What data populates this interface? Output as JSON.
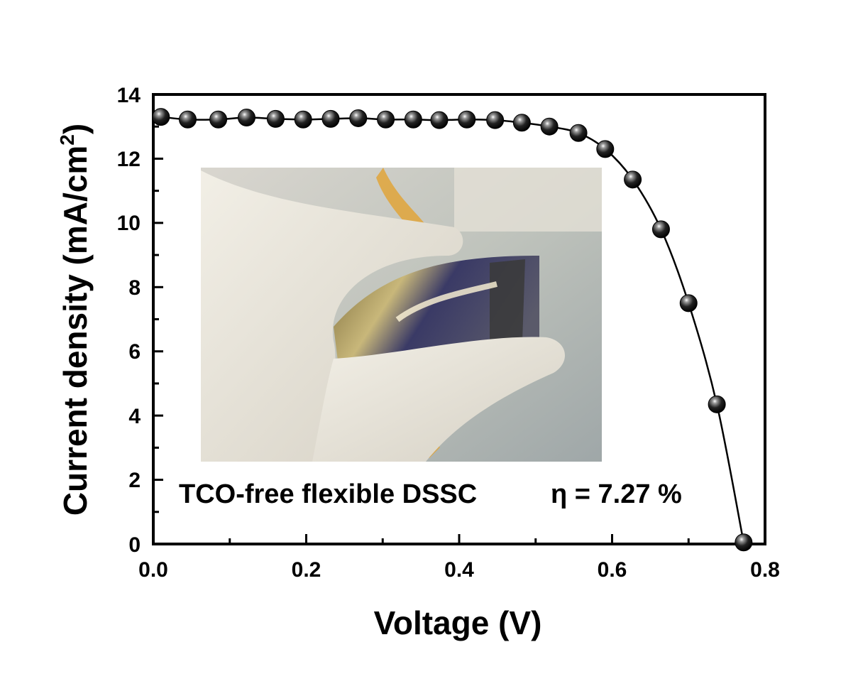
{
  "chart_data": {
    "type": "scatter",
    "xlabel": "Voltage (V)",
    "ylabel": {
      "main": "Current density (mA/cm",
      "sup": "2",
      "close": ")"
    },
    "xlim": [
      0.0,
      0.8
    ],
    "ylim": [
      0,
      14
    ],
    "x_ticks": [
      "0.0",
      "0.2",
      "0.4",
      "0.6",
      "0.8"
    ],
    "x_tick_values": [
      0.0,
      0.2,
      0.4,
      0.6,
      0.8
    ],
    "y_ticks": [
      "0",
      "2",
      "4",
      "6",
      "8",
      "10",
      "12",
      "14"
    ],
    "y_tick_values": [
      0,
      2,
      4,
      6,
      8,
      10,
      12,
      14
    ],
    "grid": false,
    "marker": "sphere",
    "colors": {
      "marker": "#1a1a1a",
      "line": "#000000",
      "axes": "#000000"
    },
    "series": [
      {
        "x": [
          0.01,
          0.045,
          0.085,
          0.122,
          0.16,
          0.196,
          0.232,
          0.268,
          0.304,
          0.34,
          0.374,
          0.41,
          0.447,
          0.482,
          0.518,
          0.556,
          0.591,
          0.627,
          0.664,
          0.7,
          0.737,
          0.772
        ],
        "y": [
          13.3,
          13.22,
          13.22,
          13.28,
          13.24,
          13.22,
          13.24,
          13.26,
          13.22,
          13.22,
          13.2,
          13.22,
          13.2,
          13.12,
          13.0,
          12.8,
          12.3,
          11.35,
          9.8,
          7.5,
          4.35,
          0.05
        ]
      }
    ],
    "annotation": {
      "device": "TCO-free flexible DSSC",
      "efficiency": "η = 7.27 %"
    },
    "inset_image": "photo-of-bent-flexible-solar-cell"
  }
}
